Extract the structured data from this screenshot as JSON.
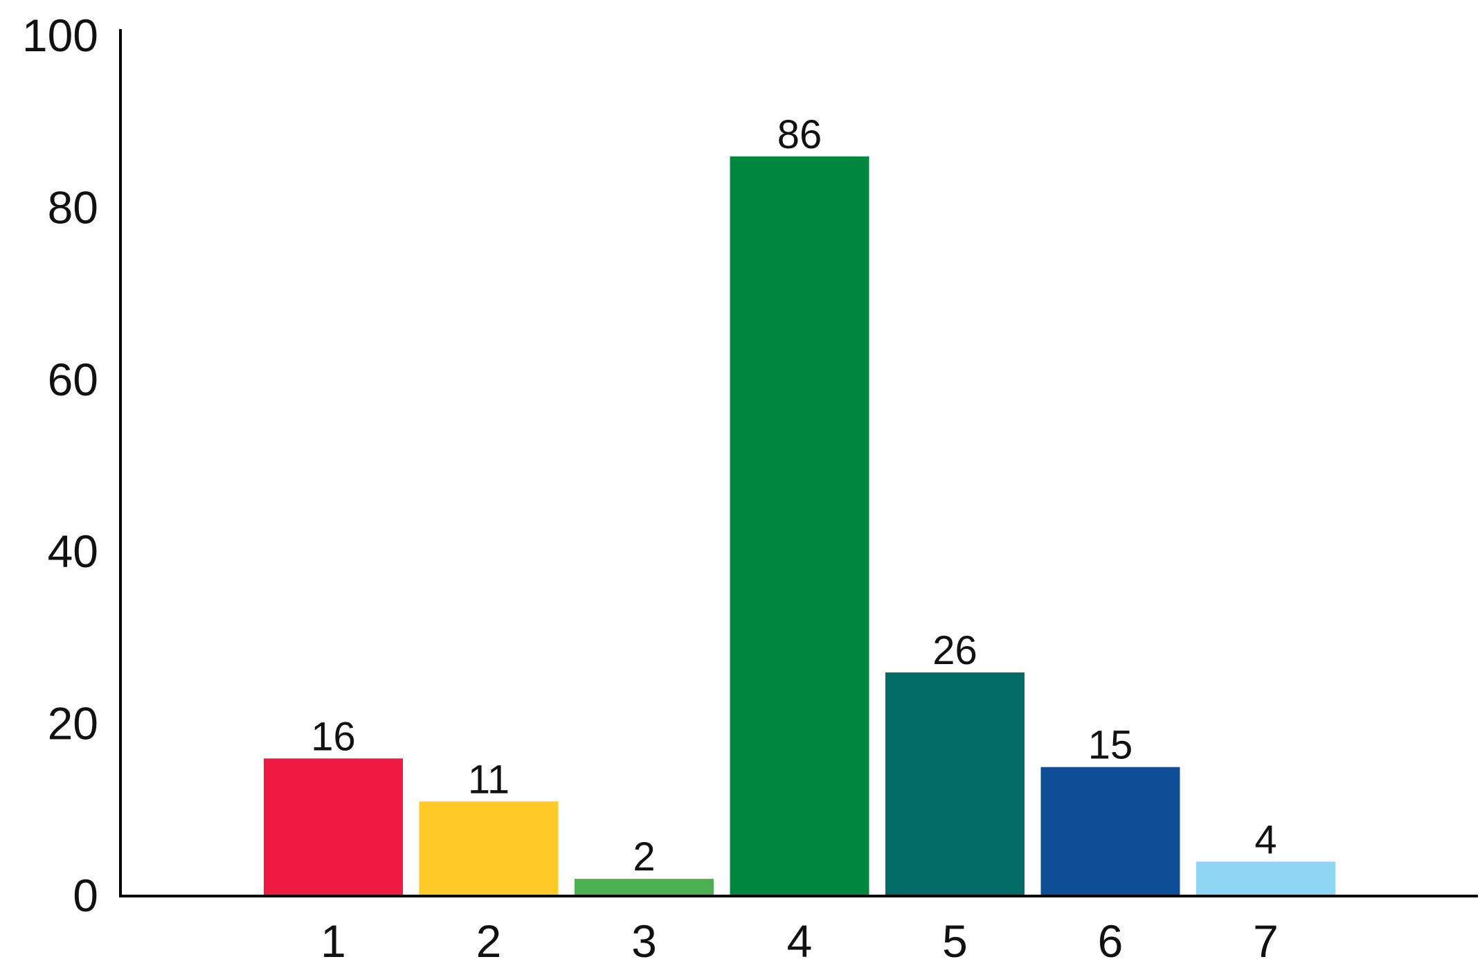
{
  "chart_data": {
    "type": "bar",
    "title": "",
    "xlabel": "",
    "ylabel": "",
    "categories": [
      "1",
      "2",
      "3",
      "4",
      "5",
      "6",
      "7"
    ],
    "values": [
      16,
      11,
      2,
      86,
      26,
      15,
      4
    ],
    "data_labels": [
      "16",
      "11",
      "2",
      "86",
      "26",
      "15",
      "4"
    ],
    "colors": [
      "#EE1A42",
      "#FFCA28",
      "#4CAF50",
      "#00873F",
      "#036B66",
      "#0E4E96",
      "#8FD6F5"
    ],
    "ylim": [
      0,
      100
    ],
    "yticks": [
      0,
      20,
      40,
      60,
      80,
      100
    ],
    "ytick_labels": [
      "0",
      "20",
      "40",
      "60",
      "80",
      "100"
    ],
    "grid": false,
    "legend": "none"
  }
}
